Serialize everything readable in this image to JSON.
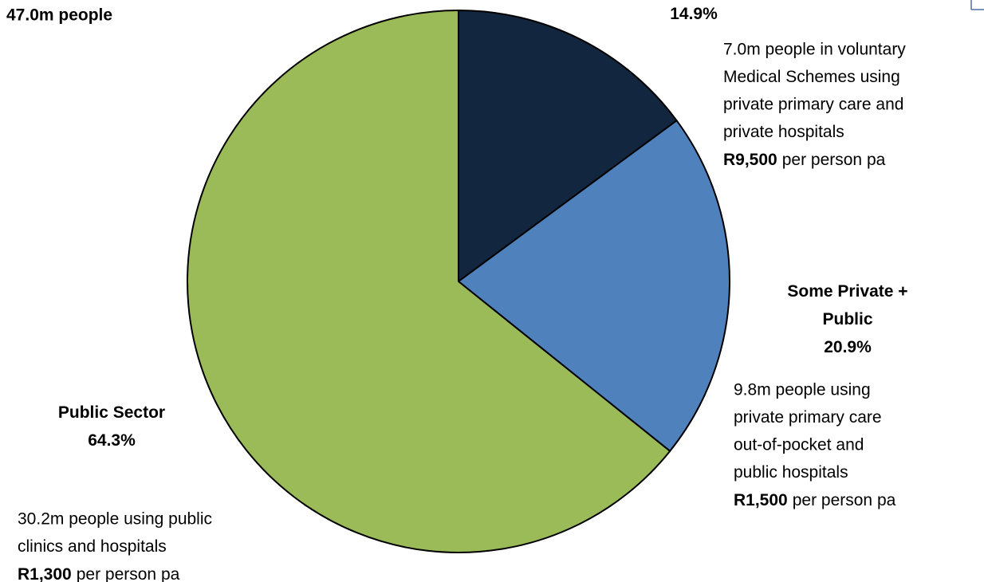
{
  "chart_data": {
    "type": "pie",
    "annotation": "47.0m people",
    "categories": [
      null,
      "Some Private + Public",
      "Public Sector"
    ],
    "values": [
      14.9,
      20.9,
      64.3
    ],
    "value_labels": [
      "14.9%",
      "20.9%",
      "64.3%"
    ],
    "colors": [
      "#13263f",
      "#4f81bd",
      "#9bbb59"
    ],
    "descriptions": [
      {
        "lines": [
          "7.0m people in voluntary",
          "Medical Schemes using",
          "private primary care and",
          "private hospitals"
        ],
        "amount": "R9,500",
        "amount_note": "per person pa"
      },
      {
        "lines": [
          "9.8m people using",
          "private primary care",
          "out-of-pocket and",
          "public hospitals"
        ],
        "amount": "R1,500",
        "amount_note": "per person pa"
      },
      {
        "lines": [
          "30.2m people using public",
          "clinics and hospitals"
        ],
        "amount": "R1,300",
        "amount_note": "per person pa"
      }
    ]
  }
}
